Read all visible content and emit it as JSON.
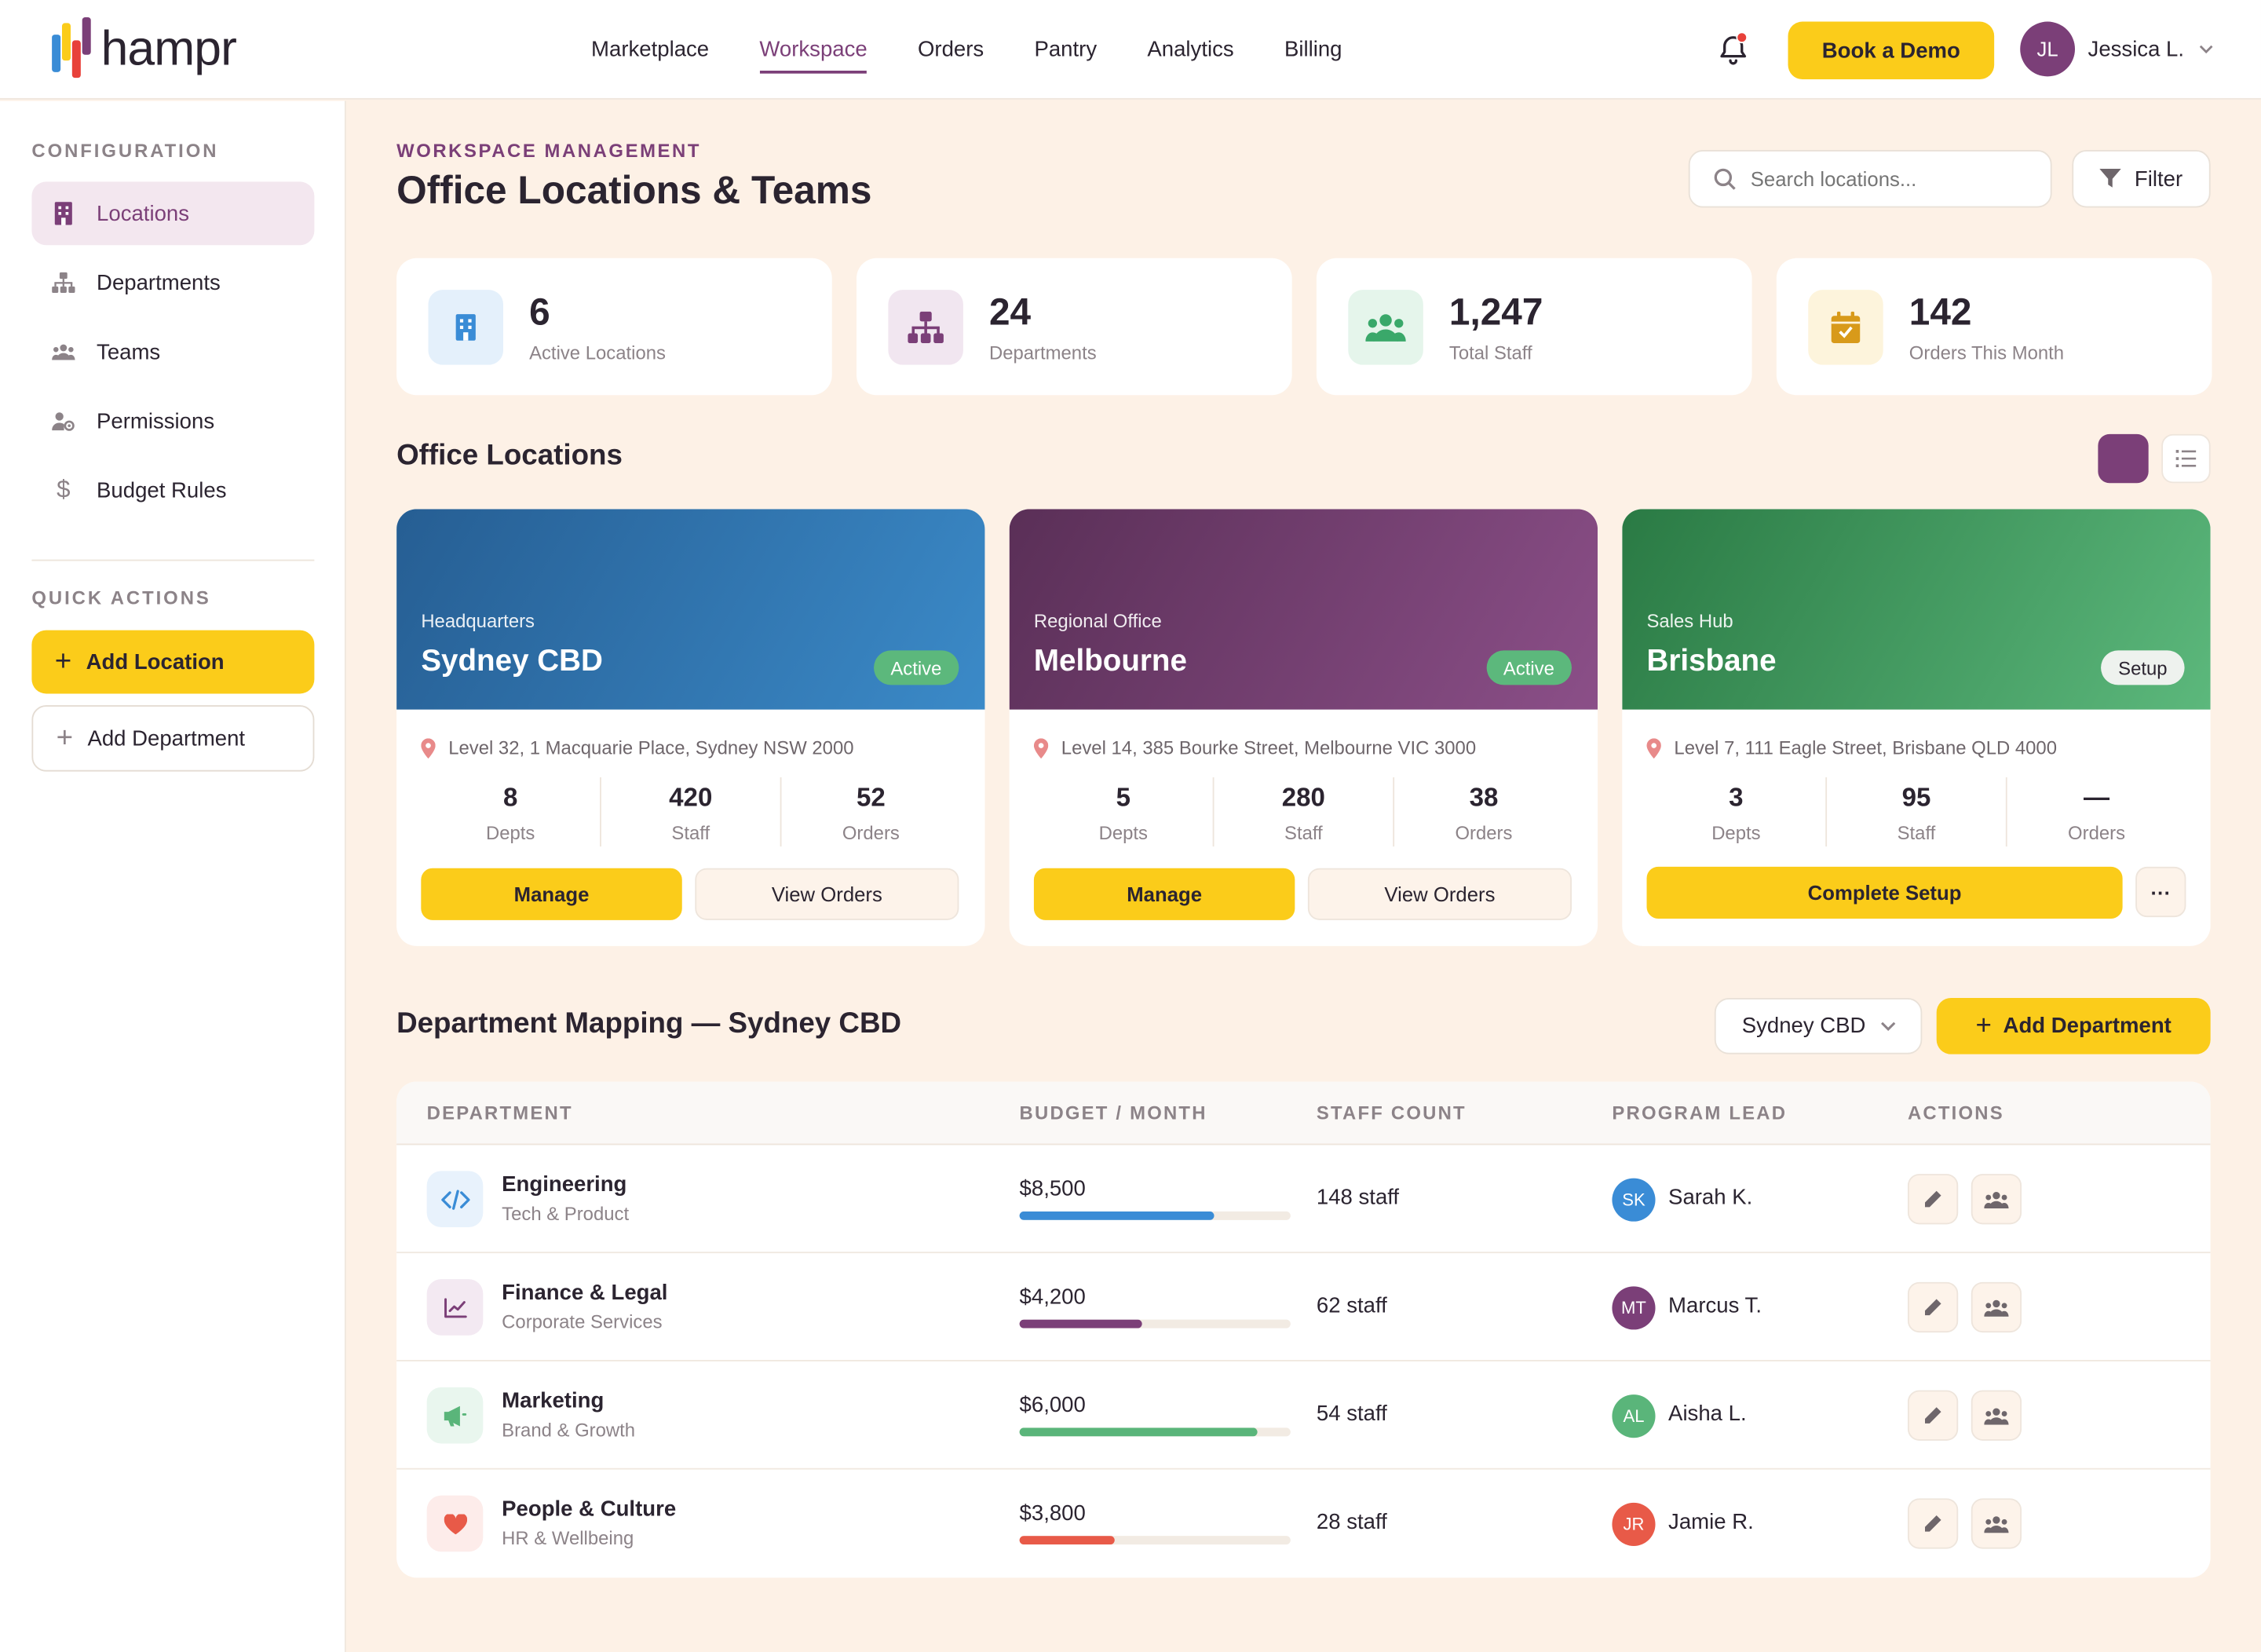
{
  "brand": {
    "name": "hampr"
  },
  "nav": {
    "items": [
      "Marketplace",
      "Workspace",
      "Orders",
      "Pantry",
      "Analytics",
      "Billing"
    ],
    "active": "Workspace"
  },
  "header": {
    "demo_label": "Book a Demo",
    "user_initials": "JL",
    "user_name": "Jessica L."
  },
  "sidebar": {
    "config_heading": "CONFIGURATION",
    "items": [
      "Locations",
      "Departments",
      "Teams",
      "Permissions",
      "Budget Rules"
    ],
    "quick_heading": "QUICK ACTIONS",
    "add_location": "Add Location",
    "add_department": "Add Department"
  },
  "page": {
    "eyebrow": "WORKSPACE MANAGEMENT",
    "title": "Office Locations & Teams",
    "search_placeholder": "Search locations...",
    "filter_label": "Filter"
  },
  "stats": [
    {
      "value": "6",
      "label": "Active Locations",
      "icon": "building-icon",
      "color": "#3a8cd6"
    },
    {
      "value": "24",
      "label": "Departments",
      "icon": "org-chart-icon",
      "color": "#7b3f78"
    },
    {
      "value": "1,247",
      "label": "Total Staff",
      "icon": "users-icon",
      "color": "#3aa86a"
    },
    {
      "value": "142",
      "label": "Orders This Month",
      "icon": "calendar-check-icon",
      "color": "#d89a1a"
    }
  ],
  "locations_section": {
    "title": "Office Locations"
  },
  "locations": [
    {
      "type": "Headquarters",
      "name": "Sydney CBD",
      "badge": "Active",
      "address": "Level 32, 1 Macquarie Place, Sydney NSW 2000",
      "depts": "8",
      "staff": "420",
      "orders": "52",
      "l_depts": "Depts",
      "l_staff": "Staff",
      "l_orders": "Orders",
      "primary": "Manage",
      "secondary": "View Orders"
    },
    {
      "type": "Regional Office",
      "name": "Melbourne",
      "badge": "Active",
      "address": "Level 14, 385 Bourke Street, Melbourne VIC 3000",
      "depts": "5",
      "staff": "280",
      "orders": "38",
      "l_depts": "Depts",
      "l_staff": "Staff",
      "l_orders": "Orders",
      "primary": "Manage",
      "secondary": "View Orders"
    },
    {
      "type": "Sales Hub",
      "name": "Brisbane",
      "badge": "Setup",
      "address": "Level 7, 111 Eagle Street, Brisbane QLD 4000",
      "depts": "3",
      "staff": "95",
      "orders": "—",
      "l_depts": "Depts",
      "l_staff": "Staff",
      "l_orders": "Orders",
      "primary": "Complete Setup",
      "more": "···"
    }
  ],
  "mapping": {
    "title": "Department Mapping — Sydney CBD",
    "selected_location": "Sydney CBD",
    "add_label": "Add Department",
    "columns": [
      "DEPARTMENT",
      "BUDGET / MONTH",
      "STAFF COUNT",
      "PROGRAM LEAD",
      "ACTIONS"
    ],
    "rows": [
      {
        "name": "Engineering",
        "sub": "Tech & Product",
        "budget": "$8,500",
        "budget_fill": 0.72,
        "bar_color": "#3a8cd6",
        "staff": "148 staff",
        "lead_initials": "SK",
        "lead": "Sarah K.",
        "lead_color": "#3a8cd6",
        "icon": "code-icon",
        "icon_color": "#3a8cd6",
        "icon_bg": "#e8f2fc"
      },
      {
        "name": "Finance & Legal",
        "sub": "Corporate Services",
        "budget": "$4,200",
        "budget_fill": 0.45,
        "bar_color": "#7b3f78",
        "staff": "62 staff",
        "lead_initials": "MT",
        "lead": "Marcus T.",
        "lead_color": "#7b3f78",
        "icon": "chart-line-icon",
        "icon_color": "#7b3f78",
        "icon_bg": "#f3e9f2"
      },
      {
        "name": "Marketing",
        "sub": "Brand & Growth",
        "budget": "$6,000",
        "budget_fill": 0.88,
        "bar_color": "#5ab57a",
        "staff": "54 staff",
        "lead_initials": "AL",
        "lead": "Aisha L.",
        "lead_color": "#5ab57a",
        "icon": "megaphone-icon",
        "icon_color": "#5ab57a",
        "icon_bg": "#e9f6ee"
      },
      {
        "name": "People & Culture",
        "sub": "HR & Wellbeing",
        "budget": "$3,800",
        "budget_fill": 0.35,
        "bar_color": "#e85a48",
        "staff": "28 staff",
        "lead_initials": "JR",
        "lead": "Jamie R.",
        "lead_color": "#e85a48",
        "icon": "heart-icon",
        "icon_color": "#e85a48",
        "icon_bg": "#fdecea"
      }
    ]
  }
}
